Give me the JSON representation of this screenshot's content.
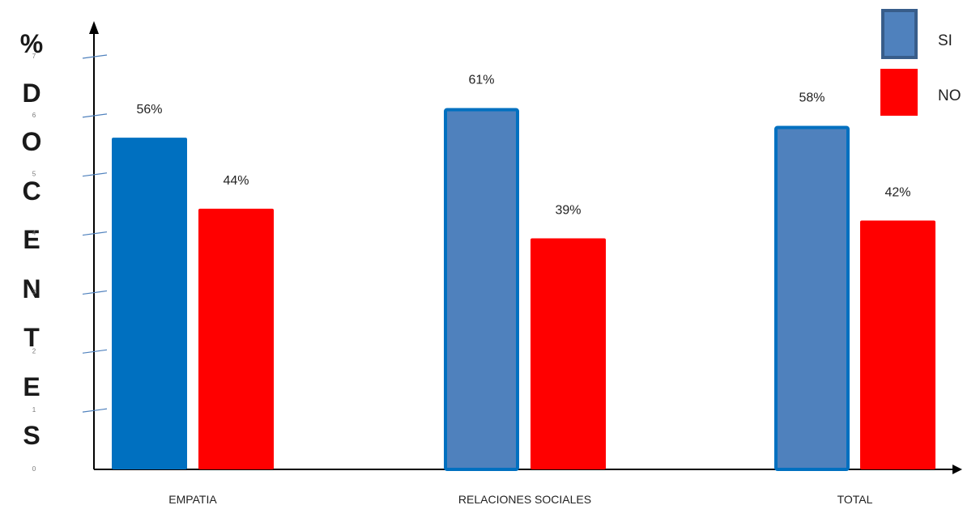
{
  "chart_data": {
    "type": "bar",
    "ylabel": "%DOCENTES",
    "categories": [
      "EMPATIA",
      "RELACIONES SOCIALES",
      "TOTAL"
    ],
    "series": [
      {
        "name": "SI",
        "values": [
          56,
          61,
          58
        ],
        "labels": [
          "56%",
          "61%",
          "58%"
        ]
      },
      {
        "name": "NO",
        "values": [
          44,
          39,
          42
        ],
        "labels": [
          "44%",
          "39%",
          "42%"
        ]
      }
    ],
    "yticks": [
      "0",
      "1",
      "2",
      "3",
      "4",
      "5",
      "6",
      "7"
    ],
    "ylim": [
      0,
      70
    ],
    "grid": false,
    "legend": "top-right"
  },
  "colors": {
    "empatia_si": "#0070c0",
    "si": "#4f81bd",
    "si_border": "#0070c0",
    "no": "#ff0000",
    "legend_si_border": "#385d8a",
    "axis": "#000000",
    "tick": "#4f81bd"
  }
}
